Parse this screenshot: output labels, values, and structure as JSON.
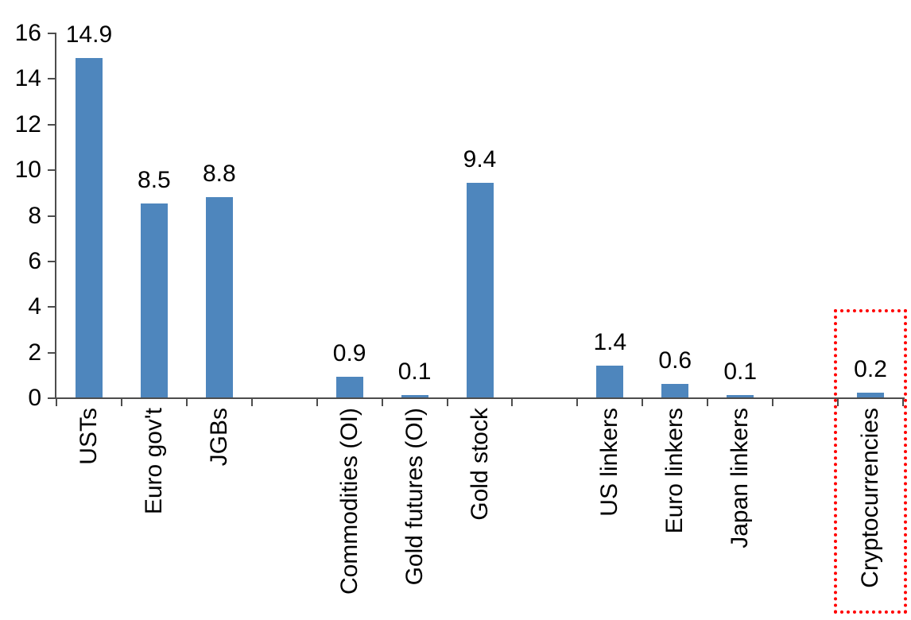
{
  "chart_data": {
    "type": "bar",
    "title": "",
    "xlabel": "",
    "ylabel": "",
    "ylim": [
      0,
      16
    ],
    "yticks": [
      0,
      2,
      4,
      6,
      8,
      10,
      12,
      14,
      16
    ],
    "grid": false,
    "legend": false,
    "bar_color": "#4e86bd",
    "axis_color": "#4d4d4d",
    "highlight_box_color": "#ff0000",
    "slots": 13,
    "categories": [
      "USTs",
      "Euro gov't",
      "JGBs",
      "Commodities (OI)",
      "Gold futures (OI)",
      "Gold stock",
      "US linkers",
      "Euro linkers",
      "Japan linkers",
      "Cryptocurrencies"
    ],
    "values": [
      14.9,
      8.5,
      8.8,
      0.9,
      0.1,
      9.4,
      1.4,
      0.6,
      0.1,
      0.2
    ],
    "series": [
      {
        "label": "USTs",
        "value": 14.9,
        "value_label": "14.9",
        "slot": 0,
        "highlighted": false
      },
      {
        "label": "Euro gov't",
        "value": 8.5,
        "value_label": "8.5",
        "slot": 1,
        "highlighted": false
      },
      {
        "label": "JGBs",
        "value": 8.8,
        "value_label": "8.8",
        "slot": 2,
        "highlighted": false
      },
      {
        "label": "Commodities (OI)",
        "value": 0.9,
        "value_label": "0.9",
        "slot": 4,
        "highlighted": false
      },
      {
        "label": "Gold futures (OI)",
        "value": 0.1,
        "value_label": "0.1",
        "slot": 5,
        "highlighted": false
      },
      {
        "label": "Gold stock",
        "value": 9.4,
        "value_label": "9.4",
        "slot": 6,
        "highlighted": false
      },
      {
        "label": "US linkers",
        "value": 1.4,
        "value_label": "1.4",
        "slot": 8,
        "highlighted": false
      },
      {
        "label": "Euro linkers",
        "value": 0.6,
        "value_label": "0.6",
        "slot": 9,
        "highlighted": false
      },
      {
        "label": "Japan linkers",
        "value": 0.1,
        "value_label": "0.1",
        "slot": 10,
        "highlighted": false
      },
      {
        "label": "Cryptocurrencies",
        "value": 0.2,
        "value_label": "0.2",
        "slot": 12,
        "highlighted": true
      }
    ]
  }
}
